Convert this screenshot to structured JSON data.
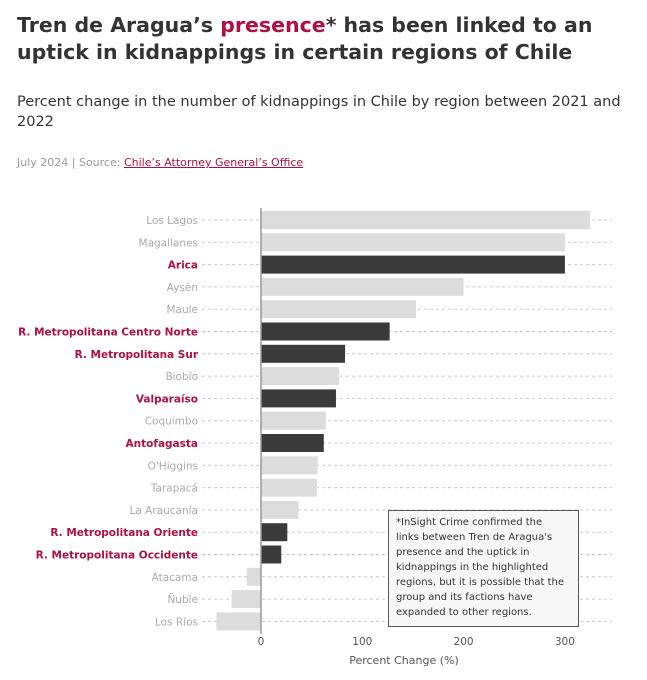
{
  "header": {
    "title_before": "Tren de Aragua’s ",
    "title_highlight": "presence",
    "title_after": "* has been linked to an uptick in kidnappings in certain regions of Chile",
    "subtitle": "Percent change in the number of kidnappings in Chile by region between 2021 and 2022",
    "source_prefix": "July 2024 | Source: ",
    "source_link": "Chile’s Attorney General’s Office"
  },
  "note": "*InSight Crime confirmed the links between Tren de Aragua's presence and the uptick in kidnappings in the highlighted regions, but it is possible that the group and its factions have expanded to other regions.",
  "colors": {
    "highlight_bar": "#3a3a3a",
    "normal_bar": "#dcdcdc",
    "highlight_label": "#b0103f",
    "normal_label": "#aaaaaa",
    "axis_text": "#555555"
  },
  "chart_data": {
    "type": "bar",
    "orientation": "horizontal",
    "title": "",
    "xlabel": "Percent Change (%)",
    "ylabel": "",
    "xlim": [
      -45,
      340
    ],
    "xticks": [
      0,
      100,
      200,
      300
    ],
    "grid": "dashed horizontal row guides",
    "categories": [
      "Los Lagos",
      "Magallanes",
      "Arica",
      "Aysén",
      "Maule",
      "R. Metropolitana Centro Norte",
      "R. Metropolitana Sur",
      "Biobío",
      "Valparaíso",
      "Coquimbo",
      "Antofagasta",
      "O'Higgins",
      "Tarapacá",
      "La Araucanía",
      "R. Metropolitana Oriente",
      "R. Metropolitana Occidente",
      "Atacama",
      "Ñuble",
      "Los Ríos"
    ],
    "values": [
      325,
      300,
      300,
      200,
      153,
      127,
      83,
      77,
      74,
      64,
      62,
      56,
      55,
      37,
      26,
      20,
      -14,
      -29,
      -44
    ],
    "highlighted": [
      false,
      false,
      true,
      false,
      false,
      true,
      true,
      false,
      true,
      false,
      true,
      false,
      false,
      false,
      true,
      true,
      false,
      false,
      false
    ]
  }
}
